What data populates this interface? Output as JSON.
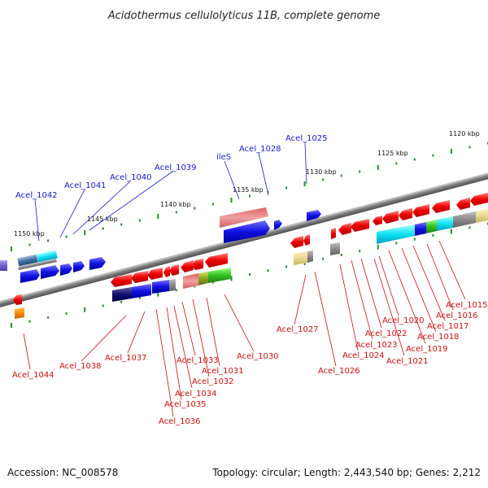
{
  "title": "Acidothermus cellulolyticus 11B, complete genome",
  "footer": {
    "accession": "Accession: NC_008578",
    "topology": "Topology: circular; Length: 2,443,540 bp; Genes: 2,212"
  },
  "ticks": [
    "1120 kbp",
    "1125 kbp",
    "1130 kbp",
    "1135 kbp",
    "1140 kbp",
    "1145 kbp",
    "1150 kbp"
  ],
  "forward_genes": [
    "Acel_1025",
    "Acel_1028",
    "ileS",
    "Acel_1039",
    "Acel_1040",
    "Acel_1041",
    "Acel_1042"
  ],
  "reverse_genes": [
    "Acel_1015",
    "Acel_1016",
    "Acel_1017",
    "Acel_1018",
    "Acel_1019",
    "Acel_1020",
    "Acel_1021",
    "Acel_1022",
    "Acel_1023",
    "Acel_1024",
    "Acel_1026",
    "Acel_1027",
    "Acel_1030",
    "Acel_1031",
    "Acel_1032",
    "Acel_1033",
    "Acel_1034",
    "Acel_1035",
    "Acel_1036",
    "Acel_1037",
    "Acel_1038",
    "Acel_1044"
  ],
  "colors": {
    "forward_label": "#1a1acc",
    "reverse_label": "#c81010",
    "backbone": "#8a8a8a",
    "tick_mark": "#2e8b2e"
  }
}
